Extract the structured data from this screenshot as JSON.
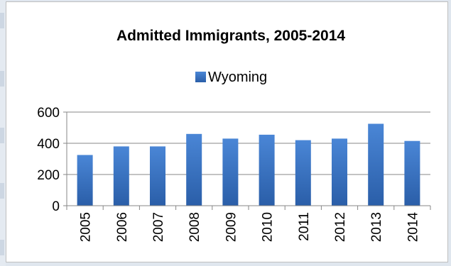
{
  "chart_data": {
    "type": "bar",
    "title": "Admitted Immigrants, 2005-2014",
    "xlabel": "",
    "ylabel": "",
    "categories": [
      "2005",
      "2006",
      "2007",
      "2008",
      "2009",
      "2010",
      "2011",
      "2012",
      "2013",
      "2014"
    ],
    "series": [
      {
        "name": "Wyoming",
        "values": [
          325,
          380,
          380,
          460,
          430,
          455,
          420,
          430,
          525,
          415
        ],
        "color": "#3a72c0"
      }
    ],
    "ylim": [
      0,
      600
    ],
    "yticks": [
      "0",
      "200",
      "400",
      "600"
    ],
    "grid": true,
    "legend_position": "top"
  }
}
